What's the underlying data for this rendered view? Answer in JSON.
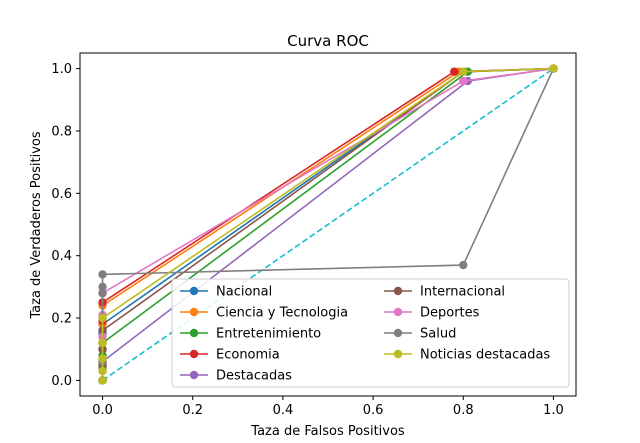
{
  "chart_data": {
    "type": "line",
    "title": "Curva ROC",
    "xlabel": "Taza de Falsos Positivos",
    "ylabel": "Taza de Verdaderos Positivos",
    "xlim": [
      -0.05,
      1.05
    ],
    "ylim": [
      -0.05,
      1.05
    ],
    "xticks": [
      "0.0",
      "0.2",
      "0.4",
      "0.6",
      "0.8",
      "1.0"
    ],
    "yticks": [
      "0.0",
      "0.2",
      "0.4",
      "0.6",
      "0.8",
      "1.0"
    ],
    "grid": false,
    "legend_position": "lower-right",
    "series": [
      {
        "name": "Nacional",
        "color": "#1f77b4",
        "x": [
          0,
          0,
          0,
          0,
          0,
          0.8,
          1.0
        ],
        "y": [
          0,
          0.05,
          0.1,
          0.15,
          0.18,
          0.99,
          1.0
        ]
      },
      {
        "name": "Ciencia y Tecnologia",
        "color": "#ff7f0e",
        "x": [
          0,
          0,
          0,
          0,
          0,
          0.79,
          1.0
        ],
        "y": [
          0,
          0.06,
          0.12,
          0.18,
          0.24,
          0.99,
          1.0
        ]
      },
      {
        "name": "Entretenimiento",
        "color": "#2ca02c",
        "x": [
          0,
          0,
          0,
          0,
          0.81,
          1.0
        ],
        "y": [
          0,
          0.04,
          0.08,
          0.12,
          0.99,
          1.0
        ]
      },
      {
        "name": "Economia",
        "color": "#d62728",
        "x": [
          0,
          0,
          0,
          0,
          0,
          0.78,
          1.0
        ],
        "y": [
          0,
          0.06,
          0.12,
          0.19,
          0.25,
          0.99,
          1.0
        ]
      },
      {
        "name": "Destacadas",
        "color": "#9467bd",
        "x": [
          0,
          0,
          0,
          0.81,
          1.0
        ],
        "y": [
          0,
          0.03,
          0.06,
          0.96,
          1.0
        ]
      },
      {
        "name": "Internacional",
        "color": "#8c564b",
        "x": [
          0,
          0,
          0,
          0,
          0.8,
          1.0
        ],
        "y": [
          0,
          0.05,
          0.1,
          0.16,
          0.99,
          1.0
        ]
      },
      {
        "name": "Deportes",
        "color": "#e377c2",
        "x": [
          0,
          0,
          0,
          0,
          0,
          0.8,
          1.0
        ],
        "y": [
          0,
          0.07,
          0.14,
          0.21,
          0.28,
          0.96,
          1.0
        ]
      },
      {
        "name": "Salud",
        "color": "#7f7f7f",
        "x": [
          0,
          0,
          0,
          0,
          0,
          0,
          0,
          0.8,
          1.0
        ],
        "y": [
          0,
          0.06,
          0.12,
          0.2,
          0.28,
          0.3,
          0.34,
          0.37,
          1.0
        ]
      },
      {
        "name": "Noticias destacadas",
        "color": "#bcbd22",
        "x": [
          0,
          0,
          0,
          0,
          0,
          0.8,
          1.0
        ],
        "y": [
          0,
          0.03,
          0.07,
          0.12,
          0.2,
          0.99,
          1.0
        ]
      }
    ],
    "diagonal": {
      "color": "#17becf",
      "style": "dashed",
      "x": [
        0,
        1
      ],
      "y": [
        0,
        1
      ]
    }
  }
}
